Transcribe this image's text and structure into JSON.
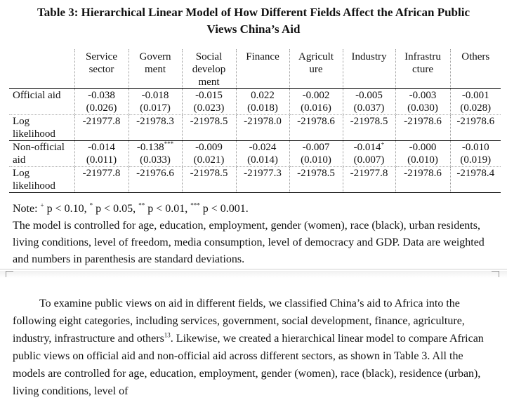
{
  "title_line1": "Table 3: Hierarchical Linear Model of How Different Fields Affect the African Public",
  "title_line2": "Views China’s Aid",
  "headers": [
    "",
    "Service sector",
    "Govern ment",
    "Social develop ment",
    "Finance",
    "Agricult ure",
    "Industry",
    "Infrastru cture",
    "Others"
  ],
  "rows": [
    {
      "label": "Official aid",
      "coef": [
        "-0.038",
        "-0.018",
        "-0.015",
        "0.022",
        "-0.002",
        "-0.005",
        "-0.003",
        "-0.001"
      ],
      "sd": [
        "(0.026)",
        "(0.017)",
        "(0.023)",
        "(0.018)",
        "(0.016)",
        "(0.037)",
        "(0.030)",
        "(0.028)"
      ],
      "sig": [
        "",
        "",
        "",
        "",
        "",
        "",
        "",
        ""
      ]
    },
    {
      "label": "Log likelihood",
      "values": [
        "-21977.8",
        "-21978.3",
        "-21978.5",
        "-21978.0",
        "-21978.6",
        "-21978.5",
        "-21978.6",
        "-21978.6"
      ]
    },
    {
      "label": "Non-official aid",
      "coef": [
        "-0.014",
        "-0.138",
        "-0.009",
        "-0.024",
        "-0.007",
        "-0.014",
        "-0.000",
        "-0.010"
      ],
      "sd": [
        "(0.011)",
        "(0.033)",
        "(0.021)",
        "(0.014)",
        "(0.010)",
        "(0.007)",
        "(0.010)",
        "(0.019)"
      ],
      "sig": [
        "",
        "***",
        "",
        "",
        "",
        "+",
        "",
        ""
      ]
    },
    {
      "label": "Log likelihood",
      "values": [
        "-21977.8",
        "-21976.6",
        "-21978.5",
        "-21977.3",
        "-21978.5",
        "-21977.8",
        "-21978.6",
        "-21978.4"
      ]
    }
  ],
  "note_line": {
    "prefix": "Note: ",
    "s1": "+",
    "t1": " p < 0.10, ",
    "s2": "*",
    "t2": " p < 0.05, ",
    "s3": "**",
    "t3": " p < 0.01, ",
    "s4": "***",
    "t4": " p < 0.001."
  },
  "note_text": "The model is controlled for age, education, employment, gender (women), race (black), urban residents, living conditions, level of freedom, media consumption, level of democracy and GDP. Data are weighted and numbers in parenthesis are standard deviations.",
  "body_part1": "To examine public views on aid in different fields, we classified China’s aid to Africa into the following eight categories, including services, government, social development, finance, agriculture, industry, infrastructure and others",
  "body_footnote": "13",
  "body_part2": ". Likewise, we created a hierarchical linear model to compare African public views on official aid and non-official aid across different sectors, as shown in Table 3. All the models are controlled for age, education, employment, gender (women), race (black), residence (urban), living conditions, level of"
}
